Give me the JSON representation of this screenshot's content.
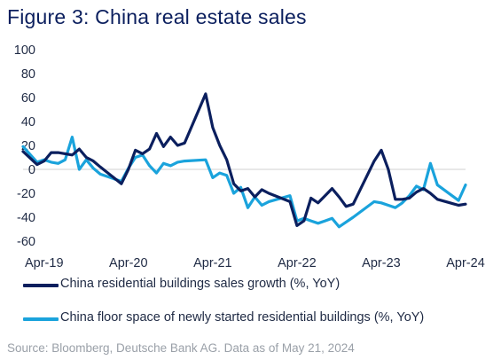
{
  "title": "Figure 3: China real estate sales",
  "source": "Source: Bloomberg, Deutsche Bank AG. Data as of May 21, 2024",
  "colors": {
    "series1": "#0b1f5e",
    "series2": "#1aa3dc",
    "zero_line": "#d0d0d0",
    "text": "#1f2a44"
  },
  "chart_data": {
    "type": "line",
    "x_tick_labels": [
      "Apr-19",
      "Apr-20",
      "Apr-21",
      "Apr-22",
      "Apr-23",
      "Apr-24"
    ],
    "x_range": [
      "Jan-19",
      "Apr-24"
    ],
    "ylim": [
      -60,
      100
    ],
    "y_ticks": [
      -60,
      -40,
      -20,
      0,
      20,
      40,
      60,
      80,
      100
    ],
    "grid": false,
    "legend_position": "bottom",
    "series": [
      {
        "name": "China residential buildings sales growth (%, YoY)",
        "points": [
          [
            "Jan-19",
            15
          ],
          [
            "Mar-19",
            4
          ],
          [
            "Apr-19",
            7
          ],
          [
            "May-19",
            14
          ],
          [
            "Jun-19",
            14
          ],
          [
            "Jul-19",
            13
          ],
          [
            "Aug-19",
            12
          ],
          [
            "Sep-19",
            17
          ],
          [
            "Oct-19",
            10
          ],
          [
            "Nov-19",
            7
          ],
          [
            "Dec-19",
            2
          ],
          [
            "Mar-20",
            -12
          ],
          [
            "Apr-20",
            0
          ],
          [
            "May-20",
            16
          ],
          [
            "Jun-20",
            13
          ],
          [
            "Jul-20",
            17
          ],
          [
            "Aug-20",
            30
          ],
          [
            "Sep-20",
            19
          ],
          [
            "Oct-20",
            27
          ],
          [
            "Nov-20",
            20
          ],
          [
            "Dec-20",
            22
          ],
          [
            "Mar-21",
            63
          ],
          [
            "Apr-21",
            35
          ],
          [
            "May-21",
            20
          ],
          [
            "Jun-21",
            8
          ],
          [
            "Jul-21",
            -12
          ],
          [
            "Aug-21",
            -18
          ],
          [
            "Sep-21",
            -16
          ],
          [
            "Oct-21",
            -23
          ],
          [
            "Nov-21",
            -17
          ],
          [
            "Dec-21",
            -20
          ],
          [
            "Mar-22",
            -27
          ],
          [
            "Apr-22",
            -47
          ],
          [
            "May-22",
            -43
          ],
          [
            "Jun-22",
            -24
          ],
          [
            "Jul-22",
            -28
          ],
          [
            "Aug-22",
            -22
          ],
          [
            "Sep-22",
            -16
          ],
          [
            "Oct-22",
            -23
          ],
          [
            "Nov-22",
            -31
          ],
          [
            "Dec-22",
            -29
          ],
          [
            "Mar-23",
            7
          ],
          [
            "Apr-23",
            16
          ],
          [
            "May-23",
            0
          ],
          [
            "Jun-23",
            -25
          ],
          [
            "Jul-23",
            -25
          ],
          [
            "Aug-23",
            -24
          ],
          [
            "Sep-23",
            -19
          ],
          [
            "Oct-23",
            -16
          ],
          [
            "Nov-23",
            -20
          ],
          [
            "Dec-23",
            -25
          ],
          [
            "Mar-24",
            -30
          ],
          [
            "Apr-24",
            -29
          ]
        ]
      },
      {
        "name": "China floor space of newly started residential buildings (%, YoY)",
        "points": [
          [
            "Jan-19",
            19
          ],
          [
            "Mar-19",
            6
          ],
          [
            "Apr-19",
            8
          ],
          [
            "May-19",
            6
          ],
          [
            "Jun-19",
            5
          ],
          [
            "Jul-19",
            8
          ],
          [
            "Aug-19",
            27
          ],
          [
            "Sep-19",
            0
          ],
          [
            "Oct-19",
            8
          ],
          [
            "Nov-19",
            1
          ],
          [
            "Dec-19",
            -4
          ],
          [
            "Mar-20",
            -10
          ],
          [
            "Apr-20",
            1
          ],
          [
            "May-20",
            10
          ],
          [
            "Jun-20",
            12
          ],
          [
            "Jul-20",
            3
          ],
          [
            "Aug-20",
            -3
          ],
          [
            "Sep-20",
            5
          ],
          [
            "Oct-20",
            3
          ],
          [
            "Nov-20",
            6
          ],
          [
            "Dec-20",
            7
          ],
          [
            "Mar-21",
            8
          ],
          [
            "Apr-21",
            -7
          ],
          [
            "May-21",
            -3
          ],
          [
            "Jun-21",
            -5
          ],
          [
            "Jul-21",
            -20
          ],
          [
            "Aug-21",
            -15
          ],
          [
            "Sep-21",
            -32
          ],
          [
            "Oct-21",
            -23
          ],
          [
            "Nov-21",
            -30
          ],
          [
            "Dec-21",
            -27
          ],
          [
            "Mar-22",
            -22
          ],
          [
            "Apr-22",
            -43
          ],
          [
            "May-22",
            -41
          ],
          [
            "Jun-22",
            -43
          ],
          [
            "Jul-22",
            -45
          ],
          [
            "Aug-22",
            -43
          ],
          [
            "Sep-22",
            -41
          ],
          [
            "Oct-22",
            -48
          ],
          [
            "Nov-22",
            -44
          ],
          [
            "Dec-22",
            -40
          ],
          [
            "Mar-23",
            -27
          ],
          [
            "Apr-23",
            -28
          ],
          [
            "May-23",
            -30
          ],
          [
            "Jun-23",
            -32
          ],
          [
            "Jul-23",
            -28
          ],
          [
            "Aug-23",
            -22
          ],
          [
            "Sep-23",
            -14
          ],
          [
            "Oct-23",
            -17
          ],
          [
            "Nov-23",
            5
          ],
          [
            "Dec-23",
            -13
          ],
          [
            "Mar-24",
            -26
          ],
          [
            "Apr-24",
            -13
          ]
        ]
      }
    ]
  }
}
